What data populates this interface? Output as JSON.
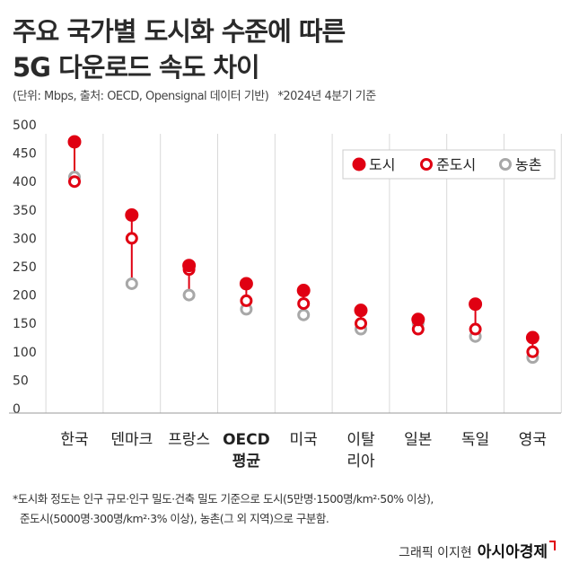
{
  "title_line1": "주요 국가별 도시화 수준에 따른",
  "title_line2": "5G 다운로드 속도 차이",
  "subtitle": "(단위: Mbps, 출처: OECD, Opensignal 데이터 기반)",
  "subtitle_note": "*2024년 4분기 기준",
  "footnote_line1": "*도시화 정도는 인구 규모·인구 밀도·건축 밀도 기준으로 도시(5만명·1500명/km²·50% 이상),",
  "footnote_line2": "준도시(5000명·300명/km²·3% 이상), 농촌(그 외 지역)으로 구분함.",
  "credit": "그래픽 이지현",
  "brand": "아시아경제",
  "colors": {
    "red": "#e00012",
    "gray": "#a8a8a8",
    "grid": "#d9d9d9",
    "text": "#333333"
  },
  "chart_data": {
    "type": "scatter",
    "categories": [
      "한국",
      "덴마크",
      "프랑스",
      "OECD\n평균",
      "미국",
      "이탈\n리아",
      "일본",
      "독일",
      "영국"
    ],
    "bold_categories": [
      "OECD\n평균"
    ],
    "series": [
      {
        "name": "도시",
        "values": [
          470,
          341,
          252,
          220,
          208,
          173,
          157,
          184,
          125
        ],
        "marker": "filled-circle-red"
      },
      {
        "name": "준도시",
        "values": [
          400,
          300,
          245,
          190,
          185,
          150,
          140,
          140,
          100
        ],
        "marker": "hollow-circle-red"
      },
      {
        "name": "농촌",
        "values": [
          408,
          220,
          200,
          175,
          165,
          140,
          150,
          127,
          90
        ],
        "marker": "hollow-circle-gray"
      }
    ],
    "y_ticks": [
      0,
      50,
      100,
      150,
      200,
      250,
      300,
      350,
      400,
      450,
      500
    ],
    "ylim": [
      0,
      500
    ],
    "grid": "vertical-lines",
    "legend_position": "top-right"
  }
}
